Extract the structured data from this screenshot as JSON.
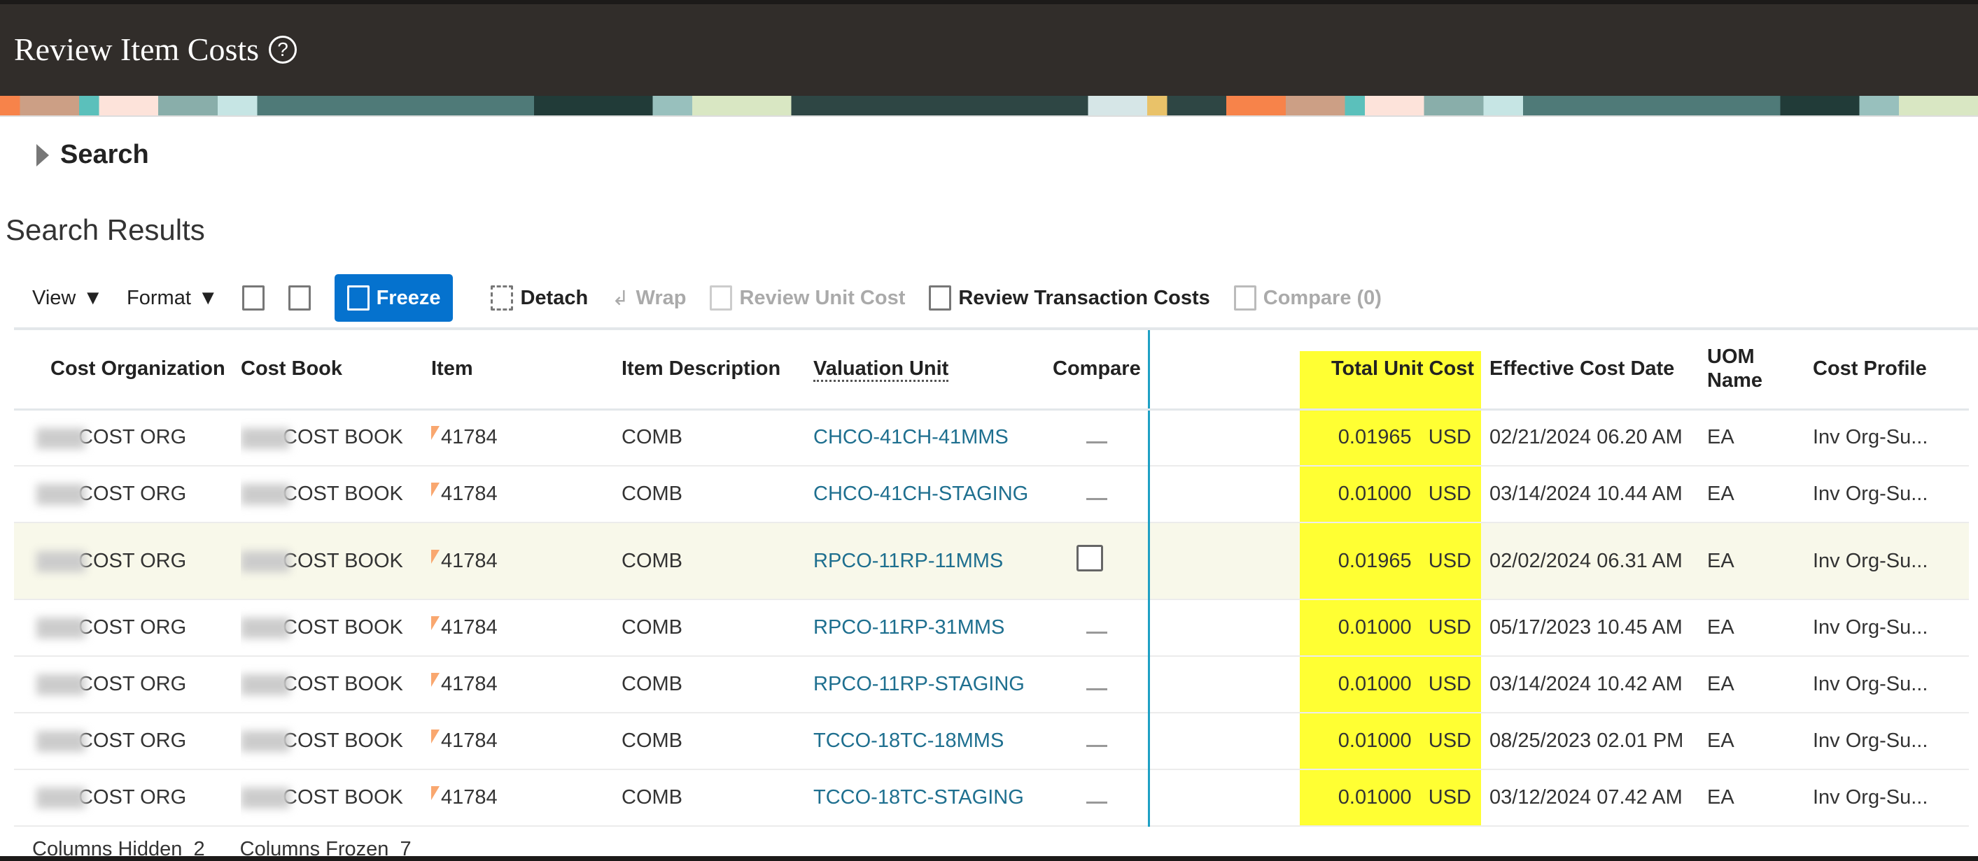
{
  "header": {
    "title": "Review Item Costs",
    "help_icon": "question-circle-icon"
  },
  "search": {
    "label": "Search"
  },
  "results": {
    "title": "Search Results"
  },
  "toolbar": {
    "view": "View",
    "format": "Format",
    "freeze": "Freeze",
    "detach": "Detach",
    "wrap": "Wrap",
    "review_unit_cost": "Review Unit Cost",
    "review_transaction_costs": "Review Transaction Costs",
    "compare": "Compare (0)"
  },
  "colors": {
    "accent": "#0572ce",
    "highlight": "#ffff33",
    "header_bg": "#312d2a",
    "link": "#1e6f8f"
  },
  "table": {
    "columns": [
      "Cost Organization",
      "Cost Book",
      "Item",
      "Item Description",
      "Valuation Unit",
      "Compare",
      "Total Unit Cost",
      "Effective Cost Date",
      "UOM Name",
      "Cost Profile"
    ],
    "rows": [
      {
        "org": "COST ORG",
        "book": "COST BOOK",
        "item": "41784",
        "desc": "COMB",
        "vu": "CHCO-41CH-41MMS",
        "compare": "dash",
        "cost": "0.01965",
        "cur": "USD",
        "date": "02/21/2024 06.20 AM",
        "uom": "EA",
        "profile": "Inv Org-Su..."
      },
      {
        "org": "COST ORG",
        "book": "COST BOOK",
        "item": "41784",
        "desc": "COMB",
        "vu": "CHCO-41CH-STAGING",
        "compare": "dash",
        "cost": "0.01000",
        "cur": "USD",
        "date": "03/14/2024 10.44 AM",
        "uom": "EA",
        "profile": "Inv Org-Su..."
      },
      {
        "org": "COST ORG",
        "book": "COST BOOK",
        "item": "41784",
        "desc": "COMB",
        "vu": "RPCO-11RP-11MMS",
        "compare": "checkbox",
        "cost": "0.01965",
        "cur": "USD",
        "date": "02/02/2024 06.31 AM",
        "uom": "EA",
        "profile": "Inv Org-Su...",
        "selected": true
      },
      {
        "org": "COST ORG",
        "book": "COST BOOK",
        "item": "41784",
        "desc": "COMB",
        "vu": "RPCO-11RP-31MMS",
        "compare": "dash",
        "cost": "0.01000",
        "cur": "USD",
        "date": "05/17/2023 10.45 AM",
        "uom": "EA",
        "profile": "Inv Org-Su..."
      },
      {
        "org": "COST ORG",
        "book": "COST BOOK",
        "item": "41784",
        "desc": "COMB",
        "vu": "RPCO-11RP-STAGING",
        "compare": "dash",
        "cost": "0.01000",
        "cur": "USD",
        "date": "03/14/2024 10.42 AM",
        "uom": "EA",
        "profile": "Inv Org-Su..."
      },
      {
        "org": "COST ORG",
        "book": "COST BOOK",
        "item": "41784",
        "desc": "COMB",
        "vu": "TCCO-18TC-18MMS",
        "compare": "dash",
        "cost": "0.01000",
        "cur": "USD",
        "date": "08/25/2023 02.01 PM",
        "uom": "EA",
        "profile": "Inv Org-Su..."
      },
      {
        "org": "COST ORG",
        "book": "COST BOOK",
        "item": "41784",
        "desc": "COMB",
        "vu": "TCCO-18TC-STAGING",
        "compare": "dash",
        "cost": "0.01000",
        "cur": "USD",
        "date": "03/12/2024 07.42 AM",
        "uom": "EA",
        "profile": "Inv Org-Su..."
      }
    ]
  },
  "footer": {
    "hidden_label": "Columns Hidden",
    "hidden": "2",
    "frozen_label": "Columns Frozen",
    "frozen": "7"
  }
}
